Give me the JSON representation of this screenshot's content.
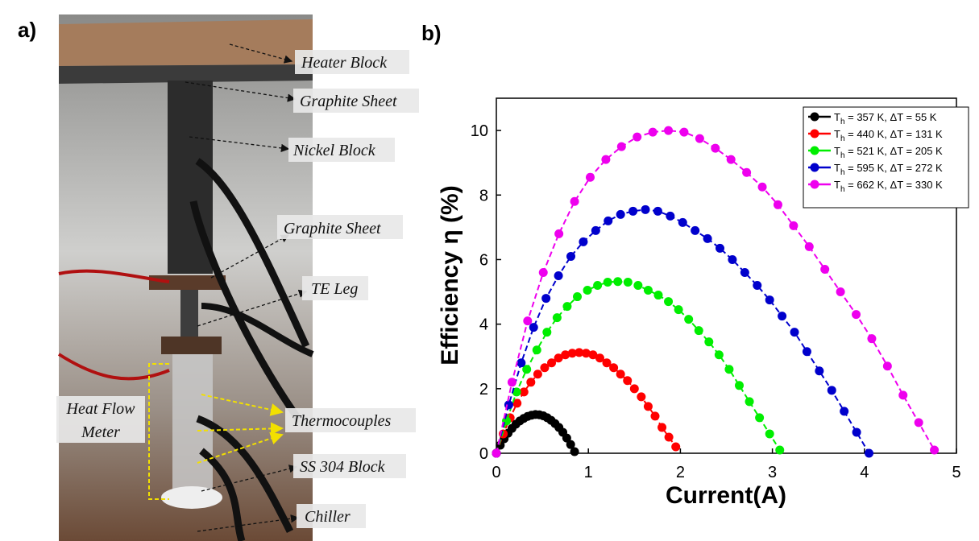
{
  "panel_labels": [
    "a)",
    "b)"
  ],
  "photo_labels": {
    "heater": "Heater Block",
    "graphite_top": "Graphite Sheet",
    "nickel": "Nickel Block",
    "graphite_bottom": "Graphite Sheet",
    "te_leg": "TE Leg",
    "heat_flow_meter": [
      "Heat Flow",
      "Meter"
    ],
    "thermocouples": "Thermocouples",
    "ss304": "SS 304 Block",
    "chiller": "Chiller"
  },
  "chart_data": {
    "type": "line",
    "x_label": "Current(A)",
    "y_label": "Efficiency η (%)",
    "xlim": [
      0,
      5
    ],
    "xticks": [
      0,
      1,
      2,
      3,
      4,
      5
    ],
    "ylim": [
      0,
      11
    ],
    "yticks": [
      0,
      2,
      4,
      6,
      8,
      10
    ],
    "legend": "upper right",
    "series": [
      {
        "name": "Th = 357 K, ΔT = 55 K",
        "color": "#000000",
        "x": [
          0,
          0.0425,
          0.085,
          0.1275,
          0.17,
          0.2125,
          0.255,
          0.2975,
          0.34,
          0.3825,
          0.425,
          0.4675,
          0.51,
          0.5525,
          0.595,
          0.6375,
          0.68,
          0.7225,
          0.765,
          0.8075,
          0.85
        ],
        "values": [
          0,
          0.25,
          0.45,
          0.62,
          0.77,
          0.9,
          1.0,
          1.08,
          1.14,
          1.18,
          1.2,
          1.19,
          1.16,
          1.1,
          1.02,
          0.92,
          0.8,
          0.65,
          0.47,
          0.27,
          0.05
        ]
      },
      {
        "name": "Th = 440 K, ΔT = 131 K",
        "color": "#ff0000",
        "x": [
          0,
          0.075,
          0.15,
          0.225,
          0.3,
          0.375,
          0.45,
          0.525,
          0.6,
          0.675,
          0.75,
          0.825,
          0.9,
          0.975,
          1.05,
          1.125,
          1.2,
          1.275,
          1.35,
          1.425,
          1.5,
          1.575,
          1.65,
          1.725,
          1.8,
          1.875,
          1.95
        ],
        "values": [
          0,
          0.6,
          1.1,
          1.55,
          1.9,
          2.2,
          2.45,
          2.65,
          2.8,
          2.95,
          3.05,
          3.1,
          3.12,
          3.1,
          3.05,
          2.95,
          2.8,
          2.65,
          2.45,
          2.25,
          2.0,
          1.75,
          1.45,
          1.15,
          0.8,
          0.5,
          0.2
        ]
      },
      {
        "name": "Th = 521 K, ΔT = 205 K",
        "color": "#00ee00",
        "x": [
          0,
          0.11,
          0.22,
          0.33,
          0.44,
          0.55,
          0.66,
          0.77,
          0.88,
          0.99,
          1.1,
          1.21,
          1.32,
          1.43,
          1.54,
          1.65,
          1.76,
          1.87,
          1.98,
          2.09,
          2.2,
          2.31,
          2.42,
          2.53,
          2.64,
          2.75,
          2.86,
          2.97,
          3.08
        ],
        "values": [
          0,
          1.0,
          1.9,
          2.6,
          3.2,
          3.75,
          4.2,
          4.55,
          4.85,
          5.05,
          5.2,
          5.3,
          5.32,
          5.3,
          5.2,
          5.05,
          4.9,
          4.7,
          4.45,
          4.15,
          3.8,
          3.45,
          3.05,
          2.6,
          2.1,
          1.6,
          1.1,
          0.6,
          0.1
        ]
      },
      {
        "name": "Th = 595 K, ΔT = 272 K",
        "color": "#0000cc",
        "x": [
          0,
          0.135,
          0.27,
          0.405,
          0.54,
          0.675,
          0.81,
          0.945,
          1.08,
          1.215,
          1.35,
          1.485,
          1.62,
          1.755,
          1.89,
          2.025,
          2.16,
          2.295,
          2.43,
          2.565,
          2.7,
          2.835,
          2.97,
          3.105,
          3.24,
          3.375,
          3.51,
          3.645,
          3.78,
          3.915,
          4.05
        ],
        "values": [
          0,
          1.5,
          2.8,
          3.9,
          4.8,
          5.5,
          6.1,
          6.55,
          6.9,
          7.2,
          7.4,
          7.5,
          7.55,
          7.5,
          7.35,
          7.15,
          6.9,
          6.65,
          6.35,
          6.0,
          5.6,
          5.2,
          4.75,
          4.25,
          3.75,
          3.15,
          2.55,
          1.95,
          1.3,
          0.65,
          0
        ]
      },
      {
        "name": "Th = 662 K, ΔT = 330 K",
        "color": "#ee00ee",
        "x": [
          0,
          0.17,
          0.34,
          0.51,
          0.68,
          0.85,
          1.02,
          1.19,
          1.36,
          1.53,
          1.7,
          1.87,
          2.04,
          2.21,
          2.38,
          2.55,
          2.72,
          2.89,
          3.06,
          3.23,
          3.4,
          3.57,
          3.74,
          3.91,
          4.08,
          4.25,
          4.42,
          4.59,
          4.76
        ],
        "values": [
          0,
          2.2,
          4.1,
          5.6,
          6.8,
          7.8,
          8.55,
          9.1,
          9.5,
          9.8,
          9.95,
          10.0,
          9.95,
          9.75,
          9.45,
          9.1,
          8.7,
          8.25,
          7.7,
          7.05,
          6.4,
          5.7,
          5.0,
          4.3,
          3.55,
          2.7,
          1.8,
          0.95,
          0.1
        ]
      }
    ]
  }
}
